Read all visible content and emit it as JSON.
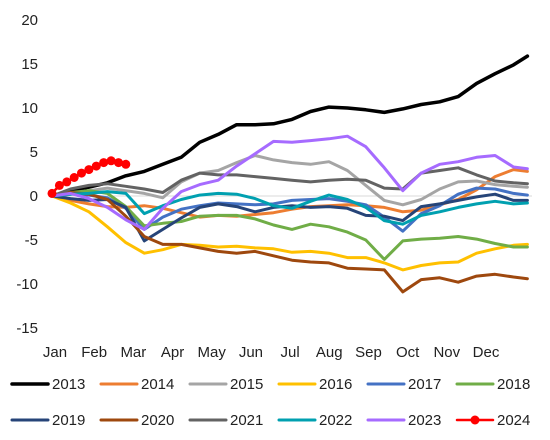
{
  "chart_data": {
    "type": "line",
    "title": "",
    "xlabel": "",
    "ylabel": "",
    "ylim": [
      -15,
      20
    ],
    "yticks": [
      -15,
      -10,
      -5,
      0,
      5,
      10,
      15,
      20
    ],
    "grid": false,
    "legend_position": "bottom",
    "x_tick_labels": [
      "Jan",
      "Feb",
      "Mar",
      "Apr",
      "May",
      "Jun",
      "Jul",
      "Aug",
      "Sep",
      "Oct",
      "Nov",
      "Dec"
    ],
    "x_domain": [
      0,
      52
    ],
    "series": [
      {
        "name": "2013",
        "color": "#000000",
        "width": 3.5,
        "x": [
          0,
          2,
          4,
          6,
          8,
          10,
          12,
          14,
          16,
          18,
          20,
          22,
          24,
          26,
          28,
          30,
          32,
          34,
          36,
          38,
          40,
          42,
          44,
          46,
          48,
          50,
          51.5
        ],
        "y": [
          0,
          0.6,
          1,
          1.5,
          2.3,
          2.8,
          3.6,
          4.4,
          6.1,
          7,
          8.1,
          8.1,
          8.2,
          8.7,
          9.6,
          10.1,
          10,
          9.8,
          9.5,
          9.9,
          10.4,
          10.7,
          11.3,
          12.8,
          13.9,
          14.9,
          15.9
        ]
      },
      {
        "name": "2014",
        "color": "#ED7D31",
        "width": 3,
        "x": [
          0,
          2,
          4,
          6,
          8,
          10,
          12,
          14,
          16,
          18,
          20,
          22,
          24,
          26,
          28,
          30,
          32,
          34,
          36,
          38,
          40,
          42,
          44,
          46,
          48,
          50,
          51.5
        ],
        "y": [
          0,
          -0.5,
          -0.9,
          -1.2,
          -1.3,
          -1.1,
          -1.4,
          -1.9,
          -2.4,
          -2.2,
          -2.3,
          -2.1,
          -1.9,
          -1.5,
          -1.2,
          -1.1,
          -1,
          -1.1,
          -1.3,
          -1.8,
          -1.6,
          -1,
          -0.4,
          0.7,
          2.2,
          3,
          2.8
        ]
      },
      {
        "name": "2015",
        "color": "#A5A5A5",
        "width": 3,
        "x": [
          0,
          2,
          4,
          6,
          8,
          10,
          12,
          14,
          16,
          18,
          20,
          22,
          24,
          26,
          28,
          30,
          32,
          34,
          36,
          38,
          40,
          42,
          44,
          46,
          48,
          50,
          51.5
        ],
        "y": [
          0,
          0.2,
          0.6,
          0.9,
          0.6,
          0.3,
          -0.2,
          1.6,
          2.6,
          2.9,
          3.8,
          4.6,
          4.1,
          3.8,
          3.6,
          3.9,
          2.9,
          1.2,
          -0.5,
          -1,
          -0.4,
          0.8,
          1.6,
          1.7,
          1.3,
          1.1,
          1
        ]
      },
      {
        "name": "2016",
        "color": "#FFC000",
        "width": 3,
        "x": [
          0,
          2,
          4,
          6,
          8,
          10,
          12,
          14,
          16,
          18,
          20,
          22,
          24,
          26,
          28,
          30,
          32,
          34,
          36,
          38,
          40,
          42,
          44,
          46,
          48,
          50,
          51.5
        ],
        "y": [
          0,
          -0.8,
          -1.8,
          -3.5,
          -5.3,
          -6.5,
          -6.1,
          -5.5,
          -5.6,
          -5.8,
          -5.7,
          -5.9,
          -6,
          -6.4,
          -6.3,
          -6.5,
          -7,
          -7,
          -7.6,
          -8.4,
          -7.9,
          -7.6,
          -7.5,
          -6.5,
          -6,
          -5.6,
          -5.5
        ]
      },
      {
        "name": "2017",
        "color": "#4472C4",
        "width": 3,
        "x": [
          0,
          2,
          4,
          6,
          8,
          10,
          12,
          14,
          16,
          18,
          20,
          22,
          24,
          26,
          28,
          30,
          32,
          34,
          36,
          38,
          40,
          42,
          44,
          46,
          48,
          50,
          51.5
        ],
        "y": [
          0,
          0.3,
          0.1,
          -0.2,
          -1.4,
          -3.8,
          -2.4,
          -1.5,
          -1.1,
          -0.8,
          -0.9,
          -1,
          -0.9,
          -0.5,
          -0.4,
          -0.3,
          -0.6,
          -1,
          -2.4,
          -4,
          -2,
          -1.1,
          0.2,
          0.9,
          0.8,
          0.3,
          0.1
        ]
      },
      {
        "name": "2018",
        "color": "#70AD47",
        "width": 3,
        "x": [
          0,
          2,
          4,
          6,
          8,
          10,
          12,
          14,
          16,
          18,
          20,
          22,
          24,
          26,
          28,
          30,
          32,
          34,
          36,
          38,
          40,
          42,
          44,
          46,
          48,
          50,
          51.5
        ],
        "y": [
          0,
          0.4,
          0.6,
          0.3,
          -1.2,
          -3.4,
          -3.1,
          -2.9,
          -2.3,
          -2.2,
          -2.2,
          -2.6,
          -3.3,
          -3.8,
          -3.2,
          -3.5,
          -4.1,
          -5,
          -7.2,
          -5.1,
          -4.9,
          -4.8,
          -4.6,
          -4.9,
          -5.4,
          -5.8,
          -5.8
        ]
      },
      {
        "name": "2019",
        "color": "#264478",
        "width": 3,
        "x": [
          0,
          2,
          4,
          6,
          8,
          10,
          12,
          14,
          16,
          18,
          20,
          22,
          24,
          26,
          28,
          30,
          32,
          34,
          36,
          38,
          40,
          42,
          44,
          46,
          48,
          50,
          51.5
        ],
        "y": [
          0,
          -0.3,
          -0.5,
          -0.4,
          -1.3,
          -5.1,
          -3.8,
          -2.5,
          -1.3,
          -0.9,
          -1.2,
          -1.8,
          -1.3,
          -1.1,
          -1.3,
          -1.2,
          -1.4,
          -2.2,
          -2.3,
          -2.8,
          -1.2,
          -0.9,
          -0.5,
          -0.1,
          0.2,
          -0.5,
          -0.5
        ]
      },
      {
        "name": "2020",
        "color": "#9E480E",
        "width": 3,
        "x": [
          0,
          2,
          4,
          6,
          8,
          10,
          12,
          14,
          16,
          18,
          20,
          22,
          24,
          26,
          28,
          30,
          32,
          34,
          36,
          38,
          40,
          42,
          44,
          46,
          48,
          50,
          51.5
        ],
        "y": [
          0,
          0.4,
          0.2,
          -0.4,
          -2.3,
          -4.6,
          -5.5,
          -5.5,
          -5.9,
          -6.3,
          -6.5,
          -6.3,
          -6.8,
          -7.3,
          -7.5,
          -7.6,
          -8.2,
          -8.3,
          -8.4,
          -10.9,
          -9.5,
          -9.3,
          -9.8,
          -9.1,
          -8.9,
          -9.2,
          -9.4
        ]
      },
      {
        "name": "2021",
        "color": "#636363",
        "width": 3,
        "x": [
          0,
          2,
          4,
          6,
          8,
          10,
          12,
          14,
          16,
          18,
          20,
          22,
          24,
          26,
          28,
          30,
          32,
          34,
          36,
          38,
          40,
          42,
          44,
          46,
          48,
          50,
          51.5
        ],
        "y": [
          0,
          0.8,
          1.2,
          1.4,
          1.1,
          0.8,
          0.4,
          1.8,
          2.6,
          2.4,
          2.4,
          2.2,
          2,
          1.8,
          1.6,
          1.8,
          1.9,
          1.8,
          0.9,
          0.8,
          2.6,
          2.9,
          3.2,
          2.4,
          1.7,
          1.5,
          1.4
        ]
      },
      {
        "name": "2022",
        "color": "#00A0B0",
        "width": 3,
        "x": [
          0,
          2,
          4,
          6,
          8,
          10,
          12,
          14,
          16,
          18,
          20,
          22,
          24,
          26,
          28,
          30,
          32,
          34,
          36,
          38,
          40,
          42,
          44,
          46,
          48,
          50,
          51.5
        ],
        "y": [
          0,
          0.2,
          0.3,
          0.5,
          0.3,
          -2,
          -1.1,
          -0.4,
          0.1,
          0.3,
          0.2,
          -0.3,
          -1.1,
          -1.4,
          -0.6,
          0.1,
          -0.4,
          -1.3,
          -2.8,
          -3.2,
          -2.2,
          -1.8,
          -1.3,
          -0.9,
          -0.6,
          -0.9,
          -0.8
        ]
      },
      {
        "name": "2023",
        "color": "#A66BFF",
        "width": 3,
        "x": [
          0,
          2,
          4,
          6,
          8,
          10,
          12,
          14,
          16,
          18,
          20,
          22,
          24,
          26,
          28,
          30,
          32,
          34,
          36,
          38,
          40,
          42,
          44,
          46,
          48,
          50,
          51.5
        ],
        "y": [
          0,
          0.3,
          -0.3,
          -1.3,
          -2.7,
          -3.8,
          -1.4,
          0.5,
          1.3,
          1.8,
          3.4,
          4.8,
          6.2,
          6.1,
          6.3,
          6.5,
          6.8,
          5.6,
          3.2,
          0.6,
          2.6,
          3.6,
          3.9,
          4.4,
          4.6,
          3.3,
          3.1
        ]
      },
      {
        "name": "2024",
        "color": "#FF0000",
        "width": 2.5,
        "markers": true,
        "x": [
          0,
          0.8,
          1.6,
          2.4,
          3.2,
          4,
          4.8,
          5.6,
          6.4,
          7.2,
          8
        ],
        "y": [
          0.3,
          1.2,
          1.6,
          2.1,
          2.6,
          3,
          3.4,
          3.8,
          4,
          3.8,
          3.6
        ]
      }
    ]
  }
}
